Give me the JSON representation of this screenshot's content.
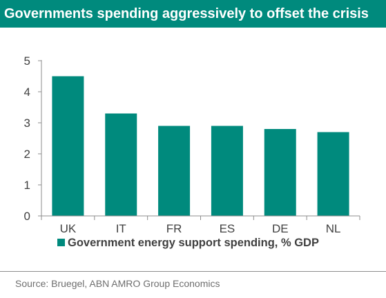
{
  "title": "Governments spending aggressively to offset the crisis",
  "source": "Source: Bruegel, ABN AMRO Group Economics",
  "colors": {
    "accent": "#008A7D",
    "axis": "#8C8C8C",
    "text": "#404040",
    "source_text": "#6E6E6E"
  },
  "chart_data": {
    "type": "bar",
    "categories": [
      "UK",
      "IT",
      "FR",
      "ES",
      "DE",
      "NL"
    ],
    "series": [
      {
        "name": "Government energy support spending, % GDP",
        "values": [
          4.5,
          3.3,
          2.9,
          2.9,
          2.8,
          2.7
        ]
      }
    ],
    "yticks": [
      "0",
      "1",
      "2",
      "3",
      "4",
      "5"
    ],
    "ylim": [
      0,
      5
    ],
    "grid": false,
    "legend": "bottom"
  }
}
